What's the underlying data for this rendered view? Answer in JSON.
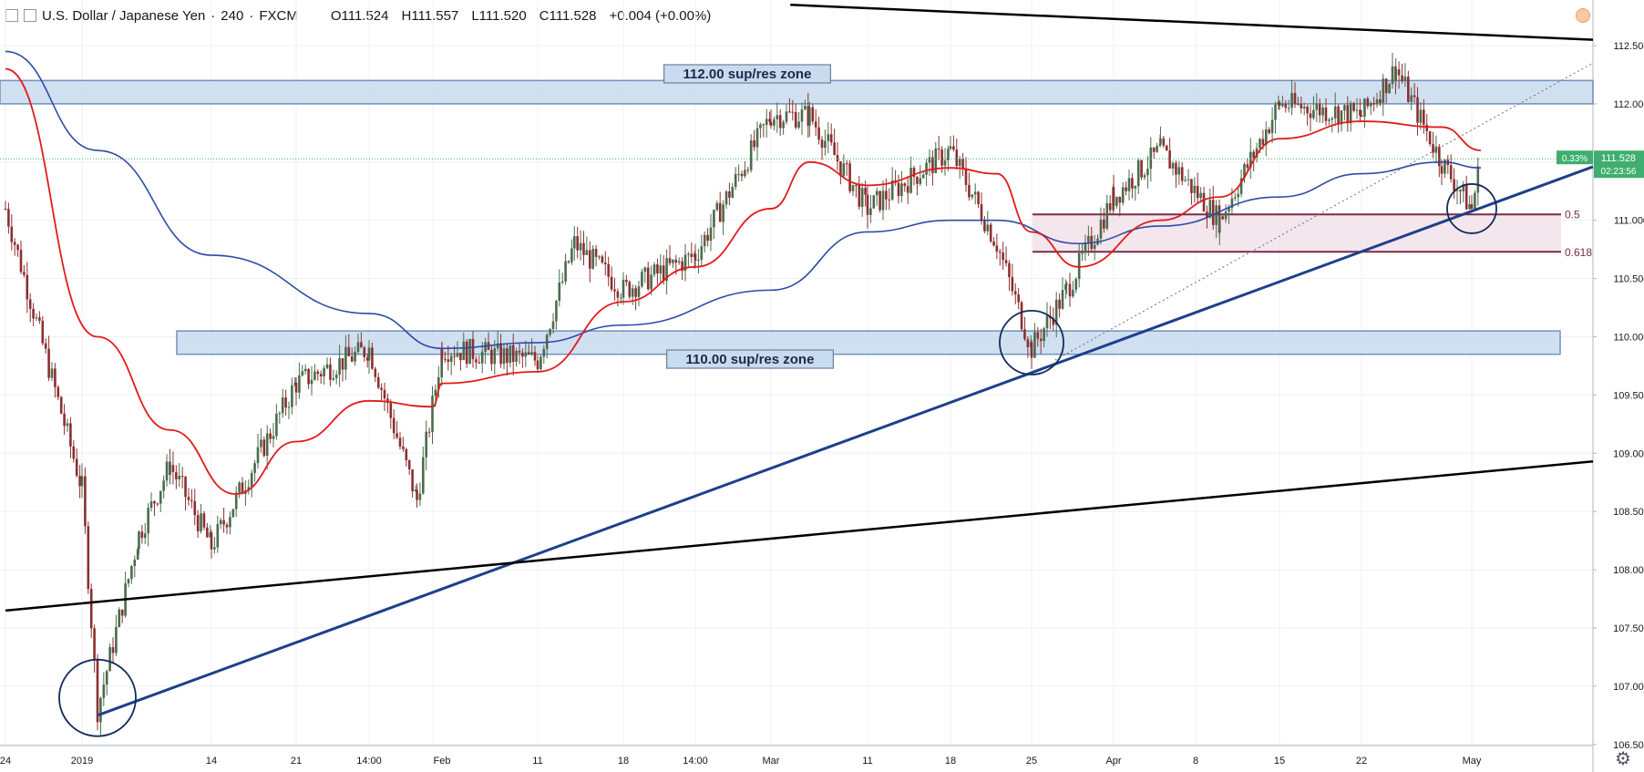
{
  "header": {
    "symbol": "U.S. Dollar / Japanese Yen",
    "interval": "240",
    "source": "FXCM",
    "open": "O111.524",
    "high": "H111.557",
    "low": "L111.520",
    "close": "C111.528",
    "change": "+0.004 (+0.00%)"
  },
  "price_axis": {
    "ticks": [
      "112.500",
      "112.000",
      "111.500",
      "111.000",
      "110.500",
      "110.000",
      "109.500",
      "109.000",
      "108.500",
      "108.000",
      "107.500",
      "107.000",
      "106.500"
    ],
    "last_price": "111.528",
    "countdown": "02:23:56",
    "pct_label": "0.33%"
  },
  "time_axis": {
    "ticks": [
      "24",
      "2019",
      "14",
      "21",
      "14:00",
      "Feb",
      "11",
      "18",
      "14:00",
      "Mar",
      "11",
      "18",
      "25",
      "Apr",
      "8",
      "15",
      "22",
      "May"
    ]
  },
  "annotations": {
    "zone_top": "112.00 sup/res zone",
    "zone_bottom": "110.00 sup/res zone",
    "fib_05": "0.5",
    "fib_0618": "0.618"
  },
  "colors": {
    "up_candle": "#4a6b4d",
    "down_candle": "#8c2f2f",
    "ma_fast": "#e31b1b",
    "ma_slow": "#2f4ba8",
    "trendline": "#1e3f8a",
    "zone_fill": "#c9dbef",
    "zone_stroke": "#5a7fb0",
    "fib_color": "#7a2a4a",
    "price_label": "#3fae6e"
  },
  "chart_data": {
    "type": "candlestick",
    "ylim": [
      106.45,
      112.75
    ],
    "price_path": [
      {
        "t": "Dec 24",
        "y": 111.1
      },
      {
        "t": "Jan 1",
        "y": 108.7
      },
      {
        "t": "Jan 3",
        "y": 106.8
      },
      {
        "t": "Jan 7",
        "y": 108.3
      },
      {
        "t": "Jan 10",
        "y": 108.9
      },
      {
        "t": "Jan 14",
        "y": 108.2
      },
      {
        "t": "Jan 21",
        "y": 109.6
      },
      {
        "t": "Jan 28",
        "y": 109.9
      },
      {
        "t": "Jan 31",
        "y": 108.6
      },
      {
        "t": "Feb 4",
        "y": 109.9
      },
      {
        "t": "Feb 11",
        "y": 109.8
      },
      {
        "t": "Feb 14",
        "y": 110.8
      },
      {
        "t": "Feb 18",
        "y": 110.4
      },
      {
        "t": "Feb 25",
        "y": 110.7
      },
      {
        "t": "Mar 1",
        "y": 111.9
      },
      {
        "t": "Mar 5",
        "y": 111.9
      },
      {
        "t": "Mar 11",
        "y": 111.1
      },
      {
        "t": "Mar 18",
        "y": 111.6
      },
      {
        "t": "Mar 22",
        "y": 110.8
      },
      {
        "t": "Mar 25",
        "y": 109.9
      },
      {
        "t": "Mar 28",
        "y": 110.4
      },
      {
        "t": "Apr 1",
        "y": 111.2
      },
      {
        "t": "Apr 5",
        "y": 111.6
      },
      {
        "t": "Apr 10",
        "y": 111.0
      },
      {
        "t": "Apr 15",
        "y": 112.0
      },
      {
        "t": "Apr 22",
        "y": 111.9
      },
      {
        "t": "Apr 25",
        "y": 112.3
      },
      {
        "t": "Apr 29",
        "y": 111.5
      },
      {
        "t": "May 2",
        "y": 111.1
      },
      {
        "t": "May 3",
        "y": 111.53
      }
    ],
    "ma_fast": [
      {
        "t": "Dec 24",
        "y": 112.3
      },
      {
        "t": "Jan 3",
        "y": 110.0
      },
      {
        "t": "Jan 10",
        "y": 109.2
      },
      {
        "t": "Jan 16",
        "y": 108.65
      },
      {
        "t": "Jan 21",
        "y": 109.1
      },
      {
        "t": "Jan 28",
        "y": 109.45
      },
      {
        "t": "Feb 1",
        "y": 109.4
      },
      {
        "t": "Feb 4",
        "y": 109.6
      },
      {
        "t": "Feb 11",
        "y": 109.7
      },
      {
        "t": "Feb 18",
        "y": 110.3
      },
      {
        "t": "Feb 25",
        "y": 110.6
      },
      {
        "t": "Mar 1",
        "y": 111.1
      },
      {
        "t": "Mar 5",
        "y": 111.5
      },
      {
        "t": "Mar 11",
        "y": 111.3
      },
      {
        "t": "Mar 18",
        "y": 111.45
      },
      {
        "t": "Mar 22",
        "y": 111.4
      },
      {
        "t": "Mar 25",
        "y": 110.9
      },
      {
        "t": "Mar 29",
        "y": 110.6
      },
      {
        "t": "Apr 5",
        "y": 111.0
      },
      {
        "t": "Apr 10",
        "y": 111.2
      },
      {
        "t": "Apr 15",
        "y": 111.7
      },
      {
        "t": "Apr 22",
        "y": 111.85
      },
      {
        "t": "Apr 29",
        "y": 111.8
      },
      {
        "t": "May 3",
        "y": 111.6
      }
    ],
    "ma_slow": [
      {
        "t": "Dec 24",
        "y": 112.45
      },
      {
        "t": "Jan 3",
        "y": 111.6
      },
      {
        "t": "Jan 14",
        "y": 110.7
      },
      {
        "t": "Jan 28",
        "y": 110.2
      },
      {
        "t": "Feb 4",
        "y": 109.9
      },
      {
        "t": "Feb 11",
        "y": 109.95
      },
      {
        "t": "Feb 18",
        "y": 110.1
      },
      {
        "t": "Mar 1",
        "y": 110.4
      },
      {
        "t": "Mar 11",
        "y": 110.9
      },
      {
        "t": "Mar 18",
        "y": 111.0
      },
      {
        "t": "Mar 22",
        "y": 111.0
      },
      {
        "t": "Mar 29",
        "y": 110.8
      },
      {
        "t": "Apr 5",
        "y": 110.95
      },
      {
        "t": "Apr 15",
        "y": 111.2
      },
      {
        "t": "Apr 22",
        "y": 111.4
      },
      {
        "t": "Apr 29",
        "y": 111.5
      },
      {
        "t": "May 3",
        "y": 111.45
      }
    ],
    "trendlines": [
      {
        "name": "rising support",
        "from": {
          "t": "Jan 3",
          "y": 106.75
        },
        "to": {
          "t": "May 7",
          "y": 111.46
        }
      },
      {
        "name": "lower wedge",
        "from": {
          "t": "Dec 24",
          "y": 107.65
        },
        "to": {
          "t": "May 7",
          "y": 108.93
        }
      },
      {
        "name": "upper wedge",
        "from": {
          "t": "Mar 3",
          "y": 112.85
        },
        "to": {
          "t": "May 7",
          "y": 112.55
        }
      },
      {
        "name": "dotted",
        "from": {
          "t": "Mar 27",
          "y": 109.8
        },
        "to": {
          "t": "May 7",
          "y": 112.35
        }
      }
    ],
    "zones": [
      {
        "name": "112.00 sup/res zone",
        "y_from": 112.0,
        "y_to": 112.2
      },
      {
        "name": "110.00 sup/res zone",
        "y_from": 109.85,
        "y_to": 110.05
      }
    ],
    "fib_levels": [
      {
        "label": "0.5",
        "y": 111.05
      },
      {
        "label": "0.618",
        "y": 110.73
      }
    ],
    "highlights": [
      {
        "t": "Jan 3",
        "y": 106.9
      },
      {
        "t": "Mar 25",
        "y": 109.95
      },
      {
        "t": "May 2",
        "y": 111.1
      }
    ]
  }
}
